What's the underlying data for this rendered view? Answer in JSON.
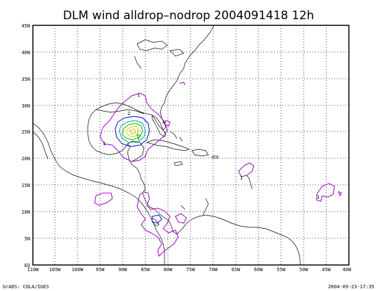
{
  "map": {
    "title": "DLM wind alldrop–nodrop 2004091418 12h",
    "lat_labels": [
      "EQ",
      "5N",
      "10N",
      "15N",
      "20N",
      "25N",
      "30N",
      "35N",
      "40N",
      "45N"
    ],
    "lon_labels": [
      "110W",
      "105W",
      "100W",
      "95W",
      "90W",
      "85W",
      "80W",
      "75W",
      "70W",
      "65W",
      "60W",
      "55W",
      "50W",
      "45W",
      "40W"
    ],
    "lon_range": [
      -110,
      -40
    ],
    "lat_range": [
      0,
      45
    ],
    "contour_labels": [
      "1",
      "2",
      "1",
      "1",
      "1",
      "1"
    ],
    "colors": {
      "contour_1": "#a000c8",
      "contour_2": "#0000d0",
      "contour_3": "#00a0a0",
      "contour_4": "#00c000",
      "contour_5": "#d0d000"
    }
  },
  "footer": {
    "left": "GrADS: COLA/IGES",
    "right": "2004-09-23-17:35"
  }
}
